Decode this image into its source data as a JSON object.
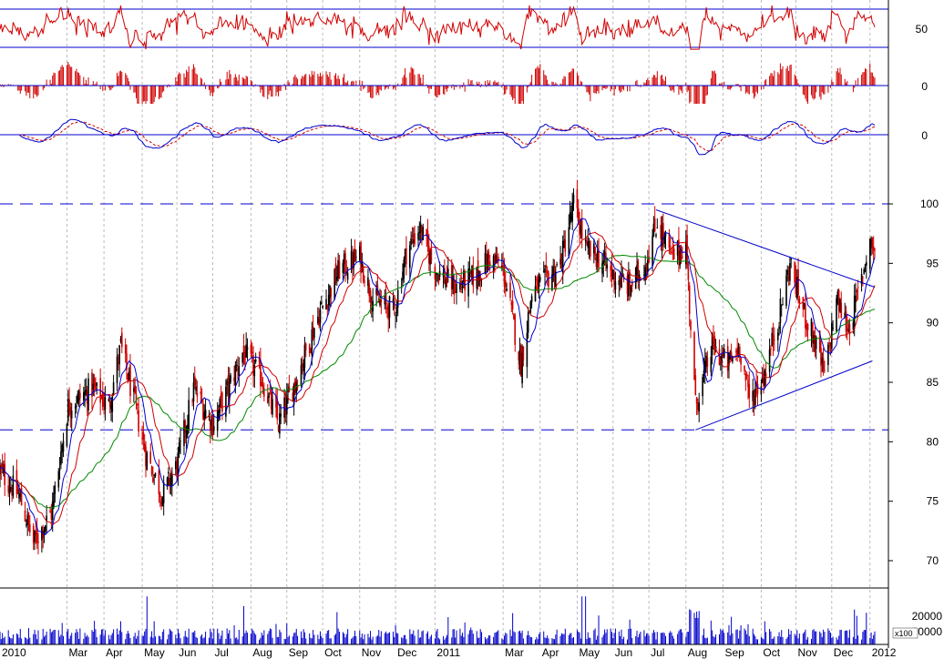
{
  "chart_data": {
    "type": "stock-chart",
    "x_axis": {
      "labels": [
        "2010",
        "Mar",
        "Apr",
        "May",
        "Jun",
        "Jul",
        "Aug",
        "Sep",
        "Oct",
        "Nov",
        "Dec",
        "2011",
        "Mar",
        "Apr",
        "May",
        "Jun",
        "Jul",
        "Aug",
        "Sep",
        "Oct",
        "Nov",
        "Dec",
        "2012"
      ],
      "range": [
        "2010-01-04",
        "2012-01-06"
      ]
    },
    "panels": {
      "oscillator_1": {
        "ticks": [
          "50"
        ],
        "reference_levels": [
          70,
          30
        ]
      },
      "oscillator_2": {
        "ticks": [
          "0"
        ],
        "type": "histogram",
        "colors": {
          "bars": "#d00000",
          "zero": "#0000cc"
        }
      },
      "oscillator_3": {
        "ticks": [
          "0"
        ],
        "series": [
          {
            "color": "#0000cc",
            "style": "solid"
          },
          {
            "color": "#d00000",
            "style": "dashed"
          }
        ]
      },
      "price": {
        "ticks": [
          "100",
          "95",
          "90",
          "85",
          "80",
          "75",
          "70"
        ],
        "ylim": [
          67,
          103
        ],
        "horizontal_levels": [
          100,
          81
        ],
        "trendlines": [
          {
            "from": [
              "2011-07-07",
              99.5
            ],
            "to": [
              "2012-01-06",
              93.0
            ]
          },
          {
            "from": [
              "2011-08-09",
              81.0
            ],
            "to": [
              "2012-01-04",
              86.8
            ]
          }
        ],
        "candle_colors": {
          "up": "#000000",
          "down": "#d00000"
        },
        "moving_averages": [
          {
            "color": "#0000cc",
            "period": 10
          },
          {
            "color": "#d00000",
            "period": 20
          },
          {
            "color": "#008800",
            "period": 50
          }
        ],
        "anchor_prices": [
          [
            "2010-01-04",
            77.5
          ],
          [
            "2010-01-20",
            75.5
          ],
          [
            "2010-02-01",
            71.5
          ],
          [
            "2010-02-16",
            74
          ],
          [
            "2010-03-02",
            83
          ],
          [
            "2010-03-22",
            84.5
          ],
          [
            "2010-04-05",
            83
          ],
          [
            "2010-04-15",
            88
          ],
          [
            "2010-04-26",
            83.5
          ],
          [
            "2010-05-06",
            79
          ],
          [
            "2010-05-20",
            75.5
          ],
          [
            "2010-06-01",
            78
          ],
          [
            "2010-06-15",
            84.5
          ],
          [
            "2010-07-01",
            81.5
          ],
          [
            "2010-07-12",
            84
          ],
          [
            "2010-07-26",
            87.5
          ],
          [
            "2010-08-10",
            85.5
          ],
          [
            "2010-08-25",
            81.5
          ],
          [
            "2010-09-08",
            85
          ],
          [
            "2010-09-27",
            90.5
          ],
          [
            "2010-10-15",
            94.5
          ],
          [
            "2010-11-01",
            95.5
          ],
          [
            "2010-11-12",
            92
          ],
          [
            "2010-11-30",
            91
          ],
          [
            "2010-12-10",
            96
          ],
          [
            "2010-12-21",
            98
          ],
          [
            "2011-01-03",
            94.5
          ],
          [
            "2011-01-20",
            93
          ],
          [
            "2011-02-07",
            94
          ],
          [
            "2011-02-18",
            95.5
          ],
          [
            "2011-03-01",
            94.5
          ],
          [
            "2011-03-16",
            86.5
          ],
          [
            "2011-03-25",
            92.5
          ],
          [
            "2011-04-05",
            93.5
          ],
          [
            "2011-04-18",
            95
          ],
          [
            "2011-04-29",
            100
          ],
          [
            "2011-05-10",
            96
          ],
          [
            "2011-05-20",
            95.5
          ],
          [
            "2011-06-01",
            94
          ],
          [
            "2011-06-15",
            93
          ],
          [
            "2011-06-28",
            95
          ],
          [
            "2011-07-08",
            98.5
          ],
          [
            "2011-07-20",
            95.5
          ],
          [
            "2011-08-01",
            96.5
          ],
          [
            "2011-08-09",
            83
          ],
          [
            "2011-08-23",
            88
          ],
          [
            "2011-09-05",
            86.5
          ],
          [
            "2011-09-15",
            88
          ],
          [
            "2011-09-23",
            83.5
          ],
          [
            "2011-10-05",
            85.5
          ],
          [
            "2011-10-19",
            91
          ],
          [
            "2011-10-27",
            95
          ],
          [
            "2011-11-07",
            91
          ],
          [
            "2011-11-15",
            89
          ],
          [
            "2011-11-25",
            85.5
          ],
          [
            "2011-12-05",
            92
          ],
          [
            "2011-12-15",
            89.5
          ],
          [
            "2011-12-22",
            92
          ],
          [
            "2012-01-02",
            97
          ],
          [
            "2012-01-06",
            96
          ]
        ]
      },
      "volume": {
        "ticks": [
          "20000",
          "10000"
        ],
        "unit": "x100",
        "ylim": [
          0,
          28000
        ]
      }
    }
  }
}
